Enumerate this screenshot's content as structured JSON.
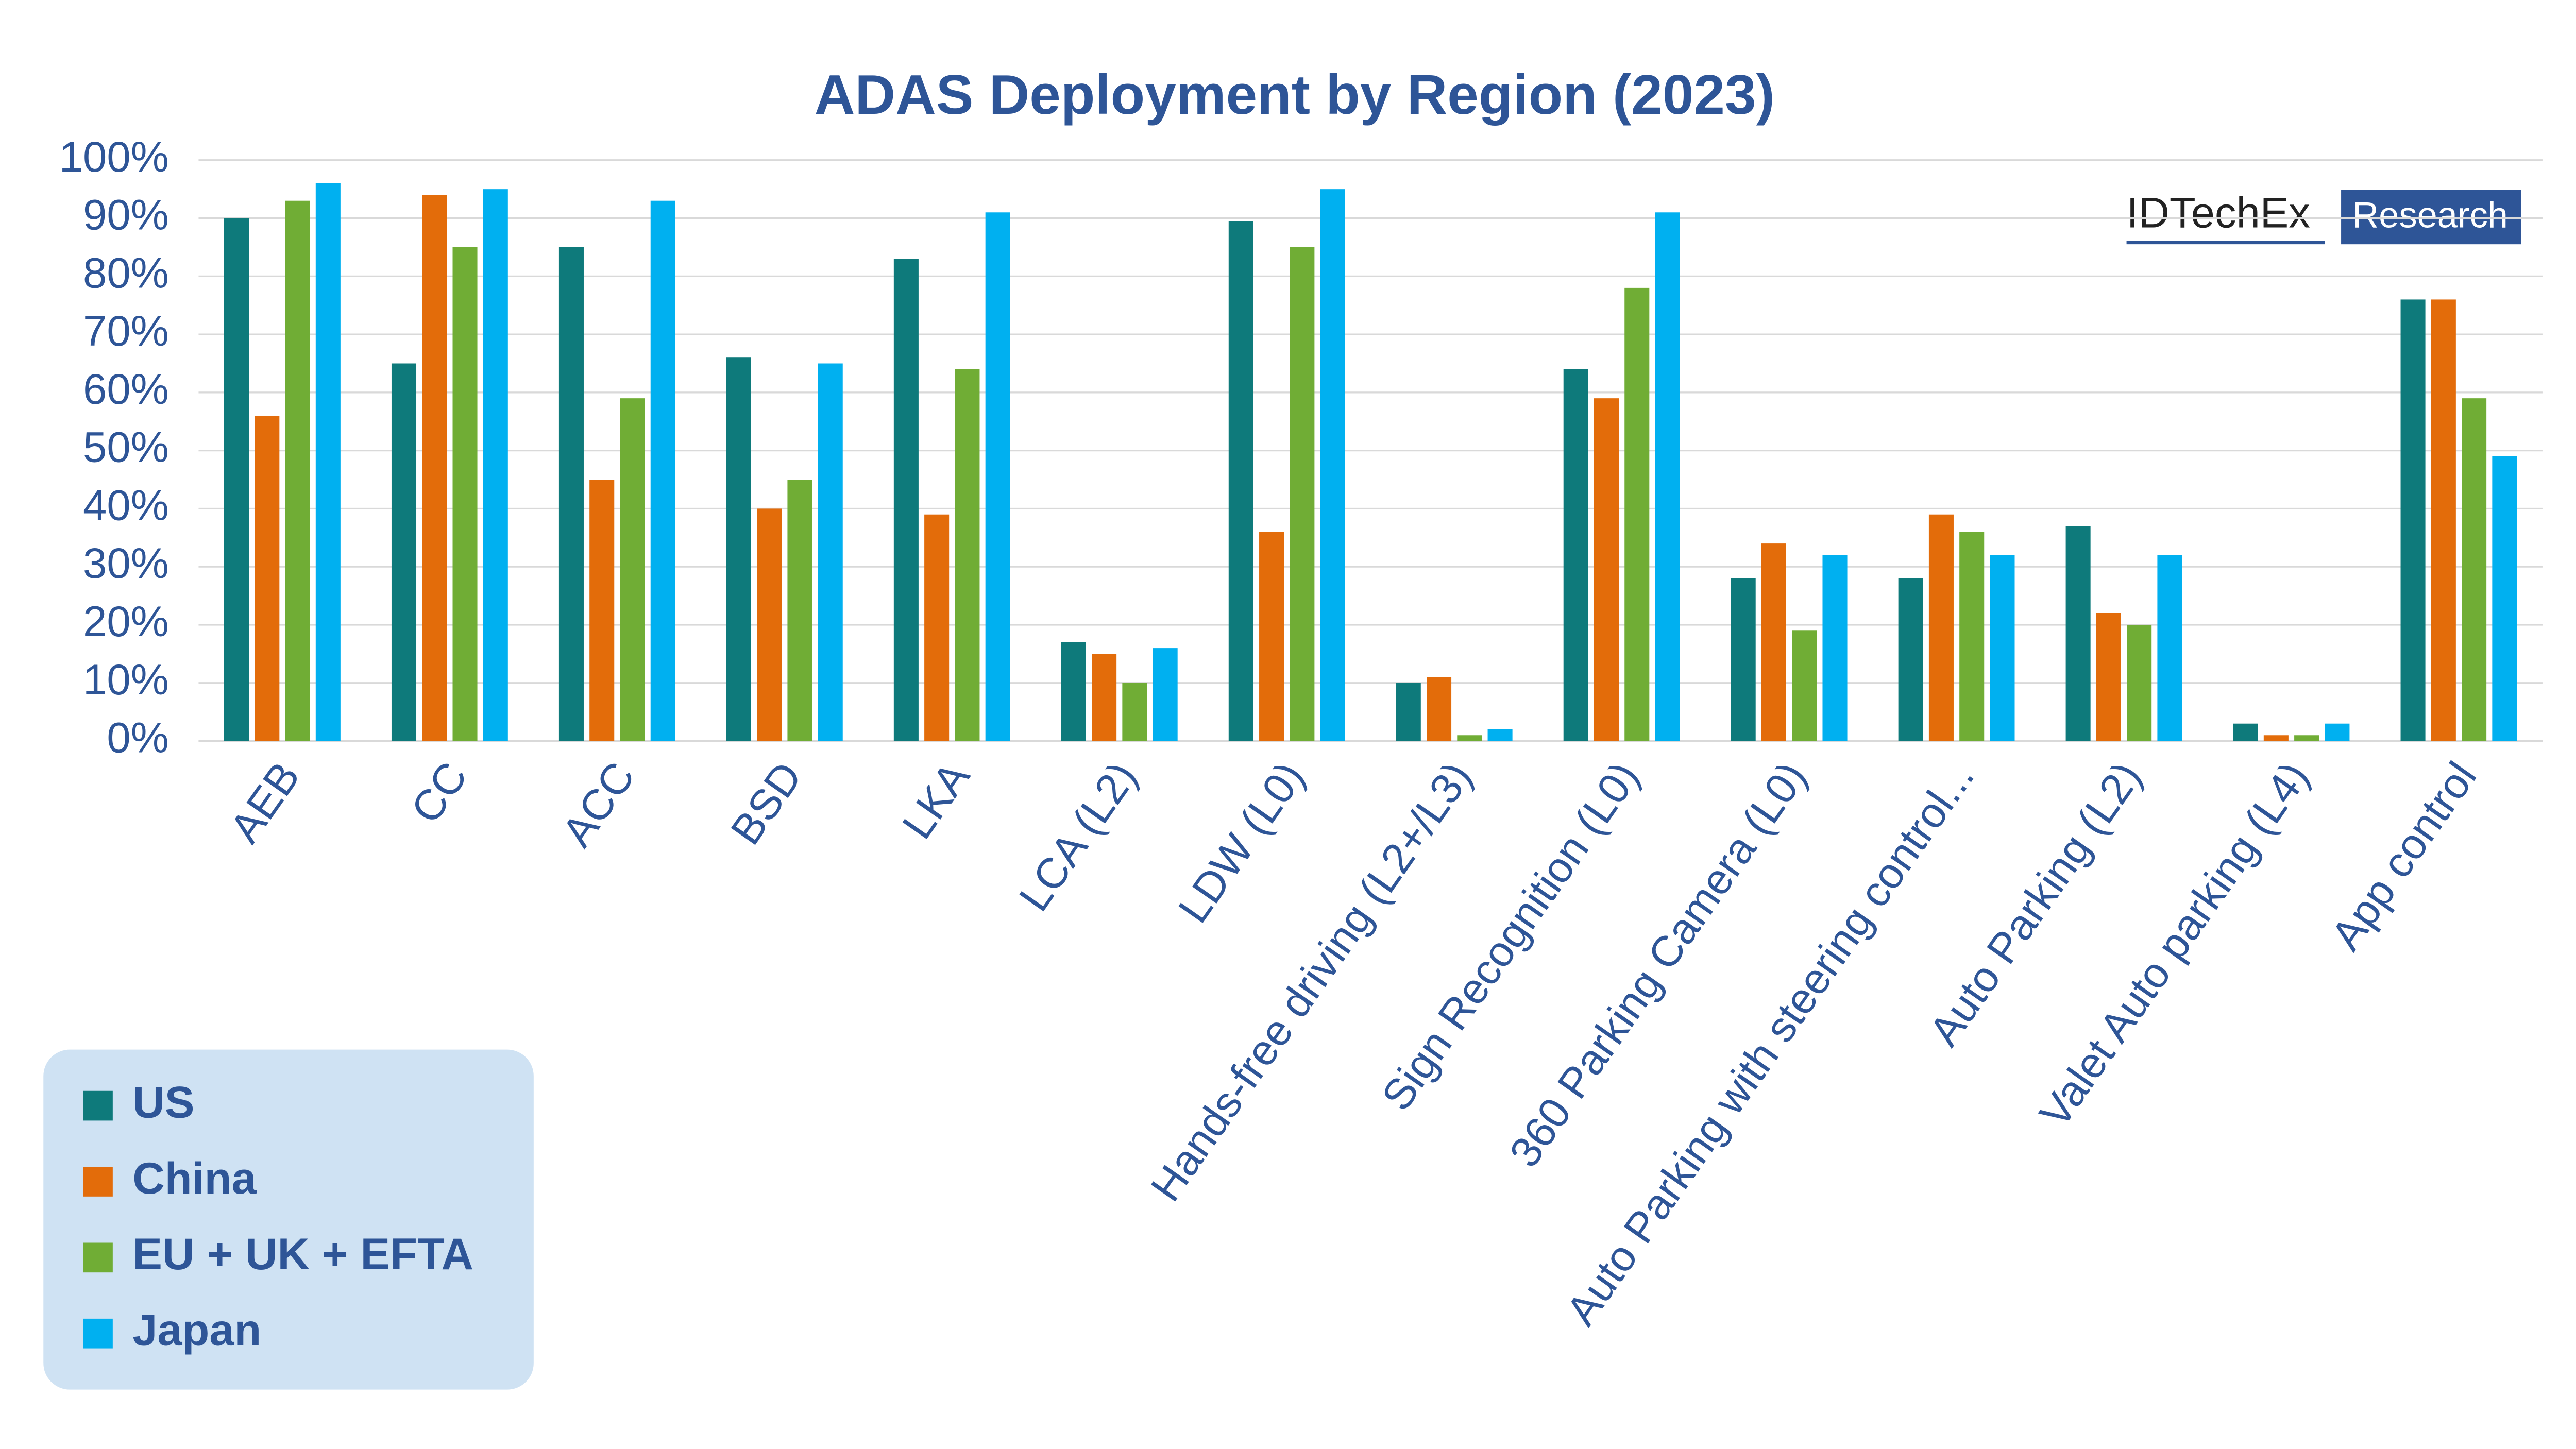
{
  "chart_data": {
    "type": "bar",
    "title": "ADAS Deployment by Region (2023)",
    "watermark": [
      "IDTechEx",
      "Research"
    ],
    "categories": [
      "AEB",
      "CC",
      "ACC",
      "BSD",
      "LKA",
      "LCA (L2)",
      "LDW (L0)",
      "Hands-free driving (L2+/L3)",
      "Sign Recognition (L0)",
      "360 Parking Camera (L0)",
      "Auto Parking with steering control...",
      "Auto Parking (L2)",
      "Valet Auto parking (L4)",
      "App control"
    ],
    "series": [
      {
        "name": "US",
        "color": "#0e7a7b",
        "values": [
          90,
          65,
          85,
          66,
          83,
          17,
          89.5,
          10,
          64,
          28,
          28,
          37,
          3,
          76
        ]
      },
      {
        "name": "China",
        "color": "#e36c0a",
        "values": [
          56,
          94,
          45,
          40,
          39,
          15,
          36,
          11,
          59,
          34,
          39,
          22,
          1,
          76
        ]
      },
      {
        "name": "EU + UK + EFTA",
        "color": "#70ad35",
        "values": [
          93,
          85,
          59,
          45,
          64,
          10,
          85,
          1,
          78,
          19,
          36,
          20,
          1,
          59
        ]
      },
      {
        "name": "Japan",
        "color": "#00b0f0",
        "values": [
          96,
          95,
          93,
          65,
          91,
          16,
          95,
          2,
          91,
          32,
          32,
          32,
          3,
          49
        ]
      }
    ],
    "ylim": [
      0,
      100
    ],
    "yticks": [
      {
        "value": 0,
        "label": "0%"
      },
      {
        "value": 10,
        "label": "10%"
      },
      {
        "value": 20,
        "label": "20%"
      },
      {
        "value": 30,
        "label": "30%"
      },
      {
        "value": 40,
        "label": "40%"
      },
      {
        "value": 50,
        "label": "50%"
      },
      {
        "value": 60,
        "label": "60%"
      },
      {
        "value": 70,
        "label": "70%"
      },
      {
        "value": 80,
        "label": "80%"
      },
      {
        "value": 90,
        "label": "90%"
      },
      {
        "value": 100,
        "label": "100%"
      }
    ],
    "grid": true,
    "legend": "lower left"
  }
}
